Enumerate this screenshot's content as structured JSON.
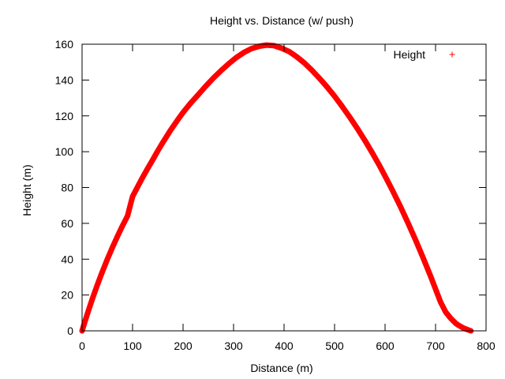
{
  "chart_data": {
    "type": "scatter",
    "title": "Height vs. Distance (w/ push)",
    "xlabel": "Distance (m)",
    "ylabel": "Height (m)",
    "xlim": [
      0,
      800
    ],
    "ylim": [
      0,
      160
    ],
    "xticks": [
      0,
      100,
      200,
      300,
      400,
      500,
      600,
      700,
      800
    ],
    "yticks": [
      0,
      20,
      40,
      60,
      80,
      100,
      120,
      140,
      160
    ],
    "grid": false,
    "legend_position": "top-right",
    "marker": "plus",
    "series": [
      {
        "name": "Height",
        "color": "#ff0000",
        "x": [
          0,
          5,
          10,
          15,
          20,
          25,
          30,
          35,
          40,
          45,
          50,
          60,
          70,
          80,
          90,
          100,
          110,
          120,
          130,
          140,
          150,
          160,
          175,
          190,
          200,
          215,
          230,
          245,
          260,
          275,
          290,
          305,
          320,
          335,
          350,
          365,
          380,
          395,
          410,
          425,
          440,
          455,
          470,
          485,
          500,
          515,
          530,
          545,
          560,
          575,
          590,
          600,
          615,
          630,
          645,
          660,
          675,
          690,
          700,
          710,
          720,
          730,
          740,
          745,
          750,
          755,
          760,
          765,
          770
        ],
        "y": [
          0,
          4.6,
          9.0,
          13.3,
          17.5,
          21.5,
          25.4,
          29.2,
          32.9,
          36.4,
          39.9,
          46.5,
          52.7,
          58.6,
          64.1,
          75.0,
          80.4,
          85.7,
          90.7,
          95.5,
          100.5,
          105.2,
          111.9,
          118.0,
          121.9,
          127.1,
          131.8,
          136.6,
          141.1,
          145.2,
          149.0,
          152.5,
          155.3,
          157.5,
          158.8,
          159.5,
          159.2,
          157.8,
          155.9,
          153.0,
          149.6,
          145.5,
          141.0,
          136.2,
          131.0,
          125.3,
          119.3,
          113.0,
          106.3,
          99.2,
          91.7,
          86.4,
          78.2,
          69.6,
          60.5,
          51.0,
          41.0,
          30.6,
          23.3,
          16.0,
          10.5,
          7.0,
          4.2,
          3.2,
          2.4,
          1.6,
          1.0,
          0.5,
          0
        ]
      }
    ]
  }
}
